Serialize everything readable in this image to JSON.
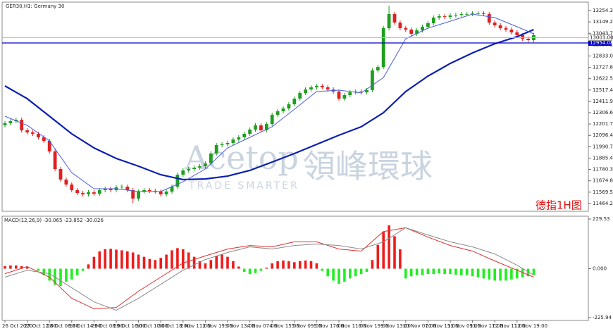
{
  "chart_data": [
    {
      "type": "candlestick",
      "title": "GER30,H1: Germany 30",
      "up_color": "#1f9e1f",
      "down_color": "#e02020",
      "categories": [
        "26 Oct 2020",
        null,
        null,
        null,
        "27 Oct 12:00",
        null,
        null,
        null,
        "28 Oct 08:00",
        null,
        null,
        null,
        "28 Oct 14:00",
        null,
        null,
        null,
        "29 Oct 08:00",
        null,
        null,
        null,
        "29 Oct 16:00",
        null,
        null,
        null,
        "30 Oct 10:00",
        null,
        null,
        null,
        "30 Oct 18:00",
        null,
        null,
        null,
        "2 Nov 11:00",
        null,
        null,
        null,
        "2 Nov 19:00",
        null,
        null,
        null,
        "3 Nov 13:00",
        null,
        null,
        null,
        "4 Nov 07:00",
        null,
        null,
        null,
        "4 Nov 15:00",
        null,
        null,
        null,
        "5 Nov 09:00",
        null,
        null,
        null,
        "5 Nov 17:00",
        null,
        null,
        null,
        "6 Nov 11:00",
        null,
        null,
        null,
        "6 Nov 19:00",
        null,
        null,
        null,
        "9 Nov 13:00",
        null,
        null,
        null,
        "10 Nov 07:00",
        null,
        null,
        null,
        "10 Nov 15:00",
        null,
        null,
        null,
        "11 Nov 09:00",
        null,
        null,
        null,
        "11 Nov 17:00",
        null,
        null,
        null,
        "12 Nov 11:00",
        null,
        null,
        null,
        "12 Nov 19:00",
        null,
        null,
        null
      ],
      "ohlc": [
        [
          12190,
          12229,
          12170,
          12209
        ],
        [
          12209,
          12248,
          12189,
          12228
        ],
        [
          12228,
          12261,
          12208,
          12241
        ],
        [
          12241,
          12261,
          12123,
          12143
        ],
        [
          12143,
          12163,
          12104,
          12124
        ],
        [
          12124,
          12144,
          12091,
          12111
        ],
        [
          12111,
          12131,
          12058,
          12078
        ],
        [
          12078,
          12098,
          12025,
          12045
        ],
        [
          12045,
          12065,
          11927,
          11947
        ],
        [
          11947,
          11967,
          11764,
          11784
        ],
        [
          11784,
          11804,
          11666,
          11686
        ],
        [
          11686,
          11706,
          11620,
          11640
        ],
        [
          11640,
          11660,
          11568,
          11588
        ],
        [
          11588,
          11608,
          11542,
          11562
        ],
        [
          11562,
          11582,
          11529,
          11549
        ],
        [
          11549,
          11588,
          11529,
          11568
        ],
        [
          11568,
          11588,
          11535,
          11555
        ],
        [
          11555,
          11608,
          11535,
          11588
        ],
        [
          11588,
          11621,
          11568,
          11601
        ],
        [
          11601,
          11621,
          11568,
          11588
        ],
        [
          11588,
          11634,
          11568,
          11614
        ],
        [
          11614,
          11640,
          11594,
          11620
        ],
        [
          11620,
          11640,
          11568,
          11588
        ],
        [
          11588,
          11608,
          11464,
          11510
        ],
        [
          11510,
          11595,
          11490,
          11575
        ],
        [
          11575,
          11608,
          11555,
          11588
        ],
        [
          11588,
          11608,
          11561,
          11581
        ],
        [
          11581,
          11601,
          11555,
          11575
        ],
        [
          11575,
          11595,
          11529,
          11549
        ],
        [
          11549,
          11595,
          11529,
          11575
        ],
        [
          11575,
          11640,
          11555,
          11620
        ],
        [
          11620,
          11751,
          11600,
          11731
        ],
        [
          11731,
          11791,
          11711,
          11771
        ],
        [
          11771,
          11804,
          11751,
          11784
        ],
        [
          11784,
          11817,
          11764,
          11797
        ],
        [
          11797,
          11830,
          11777,
          11810
        ],
        [
          11810,
          11856,
          11790,
          11836
        ],
        [
          11836,
          11948,
          11816,
          11928
        ],
        [
          11928,
          12026,
          11908,
          12006
        ],
        [
          12006,
          12033,
          11986,
          12013
        ],
        [
          12013,
          12046,
          11993,
          12026
        ],
        [
          12026,
          12078,
          12006,
          12058
        ],
        [
          12058,
          12098,
          12038,
          12078
        ],
        [
          12078,
          12131,
          12058,
          12111
        ],
        [
          12111,
          12170,
          12091,
          12150
        ],
        [
          12150,
          12209,
          12130,
          12189
        ],
        [
          12189,
          12209,
          12123,
          12143
        ],
        [
          12143,
          12222,
          12123,
          12202
        ],
        [
          12202,
          12307,
          12182,
          12287
        ],
        [
          12287,
          12340,
          12267,
          12320
        ],
        [
          12320,
          12366,
          12300,
          12346
        ],
        [
          12346,
          12405,
          12326,
          12385
        ],
        [
          12385,
          12457,
          12365,
          12437
        ],
        [
          12437,
          12510,
          12417,
          12490
        ],
        [
          12490,
          12542,
          12470,
          12522
        ],
        [
          12522,
          12562,
          12502,
          12542
        ],
        [
          12542,
          12575,
          12522,
          12555
        ],
        [
          12555,
          12575,
          12522,
          12542
        ],
        [
          12542,
          12562,
          12502,
          12522
        ],
        [
          12522,
          12542,
          12483,
          12503
        ],
        [
          12503,
          12523,
          12417,
          12437
        ],
        [
          12437,
          12490,
          12417,
          12470
        ],
        [
          12470,
          12516,
          12450,
          12496
        ],
        [
          12496,
          12523,
          12476,
          12503
        ],
        [
          12503,
          12523,
          12476,
          12496
        ],
        [
          12496,
          12536,
          12476,
          12516
        ],
        [
          12516,
          12719,
          12496,
          12699
        ],
        [
          12699,
          12751,
          12679,
          12731
        ],
        [
          12731,
          13111,
          12711,
          13091
        ],
        [
          13091,
          13300,
          13071,
          13222
        ],
        [
          13222,
          13242,
          13123,
          13143
        ],
        [
          13143,
          13163,
          13071,
          13091
        ],
        [
          13091,
          13111,
          13058,
          13078
        ],
        [
          13078,
          13098,
          13019,
          13039
        ],
        [
          13039,
          13091,
          13019,
          13071
        ],
        [
          13071,
          13124,
          13051,
          13104
        ],
        [
          13104,
          13157,
          13084,
          13137
        ],
        [
          13137,
          13209,
          13117,
          13189
        ],
        [
          13189,
          13222,
          13169,
          13202
        ],
        [
          13202,
          13222,
          13176,
          13196
        ],
        [
          13196,
          13229,
          13176,
          13209
        ],
        [
          13209,
          13235,
          13189,
          13215
        ],
        [
          13215,
          13242,
          13195,
          13222
        ],
        [
          13222,
          13242,
          13202,
          13222
        ],
        [
          13222,
          13248,
          13202,
          13228
        ],
        [
          13228,
          13248,
          13208,
          13228
        ],
        [
          13228,
          13248,
          13202,
          13222
        ],
        [
          13222,
          13242,
          13123,
          13143
        ],
        [
          13143,
          13163,
          13097,
          13117
        ],
        [
          13117,
          13137,
          13071,
          13091
        ],
        [
          13091,
          13111,
          13058,
          13078
        ],
        [
          13078,
          13098,
          13032,
          13052
        ],
        [
          13052,
          13072,
          13006,
          13026
        ],
        [
          13026,
          13046,
          12973,
          12993
        ],
        [
          12993,
          13013,
          12960,
          12980
        ],
        [
          12980,
          13046,
          12960,
          13026
        ]
      ],
      "lines": [
        {
          "color": "#0a1fb0",
          "x": [
            0,
            4,
            8,
            12,
            16,
            20,
            24,
            28,
            32,
            36,
            40,
            44,
            48,
            52,
            56,
            60,
            64,
            68,
            72,
            76,
            80,
            84,
            88,
            92,
            95
          ],
          "values": [
            12555,
            12437,
            12274,
            12111,
            11980,
            11882,
            11810,
            11731,
            11686,
            11692,
            11718,
            11771,
            11849,
            11928,
            12013,
            12098,
            12176,
            12307,
            12503,
            12647,
            12764,
            12862,
            12947,
            13012,
            13078
          ]
        },
        {
          "color": "#4a5ee0",
          "x": [
            0,
            4,
            8,
            12,
            16,
            20,
            24,
            28,
            32,
            36,
            40,
            44,
            48,
            52,
            56,
            60,
            64,
            68,
            72,
            76,
            80,
            84,
            88,
            92,
            95
          ],
          "values": [
            12274,
            12189,
            12045,
            11751,
            11601,
            11601,
            11575,
            11575,
            11666,
            11784,
            11980,
            12078,
            12176,
            12339,
            12503,
            12516,
            12490,
            12633,
            12993,
            13091,
            13156,
            13222,
            13189,
            13104,
            13039
          ]
        }
      ],
      "hline": {
        "value": 12954.08,
        "label": "12954.08",
        "color": "#0000c8"
      },
      "last_price": {
        "value": 13003.0,
        "label": "13003.00"
      },
      "ylim": [
        11392,
        13333
      ],
      "yticks": [
        {
          "value": 13254.3,
          "label": "13254.30"
        },
        {
          "value": 13149.2,
          "label": "13149.20"
        },
        {
          "value": 13043.7,
          "label": "13043.70"
        },
        {
          "value": 12938.1,
          "label": "12938.10"
        },
        {
          "value": 12833,
          "label": "12833.00"
        },
        {
          "value": 12727.8,
          "label": "12727.80"
        },
        {
          "value": 12622.5,
          "label": "12622.50"
        },
        {
          "value": 12517.4,
          "label": "12517.40"
        },
        {
          "value": 12411.9,
          "label": "12411.90"
        },
        {
          "value": 12306.6,
          "label": "12306.60"
        },
        {
          "value": 12201.7,
          "label": "12201.70"
        },
        {
          "value": 12096.4,
          "label": "12096.40"
        },
        {
          "value": 11990.7,
          "label": "11990.70"
        },
        {
          "value": 11885.4,
          "label": "11885.40"
        },
        {
          "value": 11780.3,
          "label": "11780.30"
        },
        {
          "value": 11674.8,
          "label": "11674.80"
        },
        {
          "value": 11569.5,
          "label": "11569.50"
        },
        {
          "value": 11464.2,
          "label": "11464.20"
        }
      ],
      "watermark": [
        "Acetop",
        "領峰環球",
        "TRADE SMARTER"
      ],
      "annotation": "德指1H图"
    },
    {
      "type": "macd",
      "title": "MACD(12,26,9) -30.065 -23.852 -30.026",
      "up_color": "#ee1c1c",
      "down_color": "#22ee22",
      "values": [
        12,
        15,
        15,
        12,
        8,
        0,
        -10,
        -30,
        -55,
        -75,
        -80,
        -60,
        -50,
        -30,
        -10,
        20,
        55,
        80,
        90,
        92,
        88,
        85,
        80,
        75,
        65,
        55,
        45,
        40,
        50,
        65,
        85,
        95,
        90,
        75,
        55,
        35,
        25,
        40,
        60,
        65,
        55,
        35,
        10,
        -15,
        -25,
        -20,
        -10,
        5,
        25,
        35,
        38,
        35,
        30,
        35,
        38,
        35,
        25,
        -10,
        -35,
        -55,
        -70,
        -60,
        -45,
        -35,
        -25,
        -15,
        40,
        110,
        170,
        200,
        150,
        90,
        -45,
        -35,
        -30,
        -30,
        -25,
        -25,
        -22,
        -25,
        -25,
        -28,
        -30,
        -30,
        -35,
        -40,
        -45,
        -50,
        -55,
        -55,
        -55,
        -50,
        -45,
        -40,
        -35,
        -30
      ],
      "lines": [
        {
          "color": "#e03030",
          "x": [
            0,
            4,
            8,
            12,
            16,
            20,
            24,
            28,
            32,
            36,
            40,
            44,
            48,
            52,
            56,
            60,
            64,
            68,
            72,
            76,
            80,
            84,
            88,
            92,
            95
          ],
          "values": [
            -23,
            10,
            -39,
            -137,
            -185,
            -179,
            -104,
            -39,
            26,
            59,
            91,
            107,
            101,
            124,
            124,
            91,
            81,
            172,
            189,
            146,
            107,
            81,
            36,
            -7,
            -39
          ]
        },
        {
          "color": "#8a8a8a",
          "x": [
            0,
            4,
            8,
            12,
            16,
            20,
            24,
            28,
            32,
            36,
            40,
            44,
            48,
            52,
            56,
            60,
            64,
            68,
            72,
            76,
            80,
            84,
            88,
            92,
            95
          ],
          "values": [
            -39,
            -7,
            -23,
            -88,
            -153,
            -192,
            -137,
            -72,
            -7,
            42,
            75,
            101,
            91,
            107,
            114,
            107,
            91,
            124,
            189,
            156,
            124,
            101,
            68,
            16,
            -29
          ]
        }
      ],
      "ylim": [
        -239,
        242.5
      ],
      "yticks": [
        229.53,
        {
          "value": 0,
          "label": "0.000"
        },
        -225.94
      ]
    }
  ]
}
